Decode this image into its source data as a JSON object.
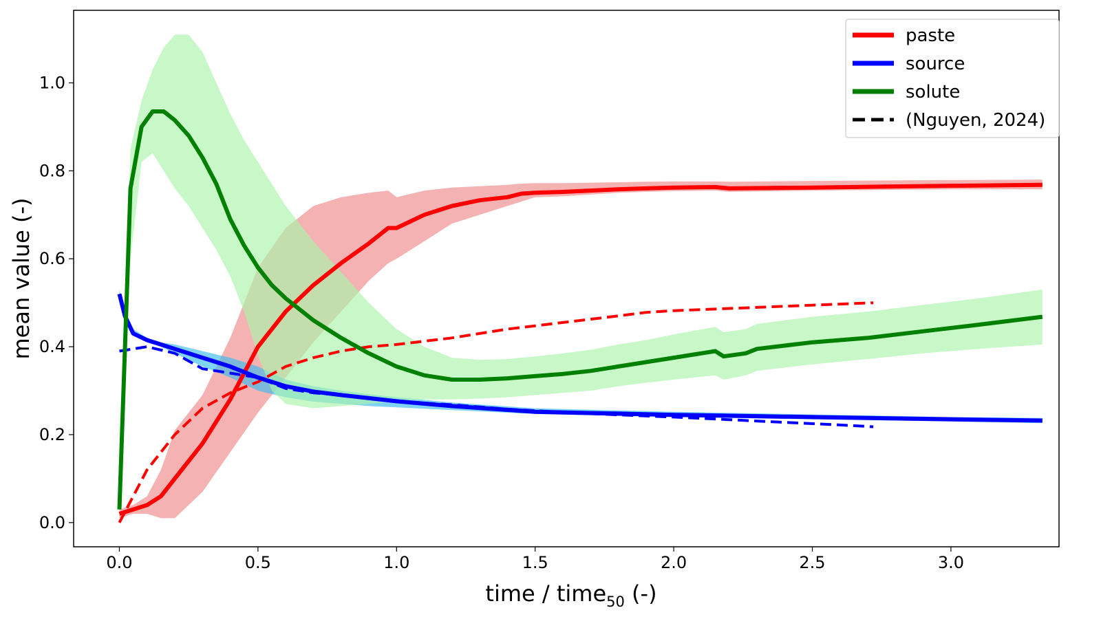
{
  "chart_data": {
    "type": "line",
    "title": "",
    "xlabel": "time / time",
    "xlabel_sub": "50",
    "xlabel_suffix": " (-)",
    "ylabel": "mean value (-)",
    "xlim": [
      -0.165,
      3.39
    ],
    "ylim": [
      -0.055,
      1.165
    ],
    "xticks": [
      0.0,
      0.5,
      1.0,
      1.5,
      2.0,
      2.5,
      3.0
    ],
    "xtick_labels": [
      "0.0",
      "0.5",
      "1.0",
      "1.5",
      "2.0",
      "2.5",
      "3.0"
    ],
    "yticks": [
      0.0,
      0.2,
      0.4,
      0.6,
      0.8,
      1.0
    ],
    "ytick_labels": [
      "0.0",
      "0.2",
      "0.4",
      "0.6",
      "0.8",
      "1.0"
    ],
    "grid": false,
    "legend_position": "top-right",
    "legend": [
      {
        "label": "paste",
        "color": "#ff0000",
        "style": "solid"
      },
      {
        "label": "source",
        "color": "#0000ff",
        "style": "solid"
      },
      {
        "label": "solute",
        "color": "#008000",
        "style": "solid"
      },
      {
        "label": "(Nguyen, 2024)",
        "color": "#000000",
        "style": "dashed"
      }
    ],
    "series": [
      {
        "name": "paste",
        "color": "#ff0000",
        "band_color": "#ee8888",
        "x": [
          0.0,
          0.05,
          0.1,
          0.15,
          0.2,
          0.3,
          0.4,
          0.5,
          0.6,
          0.7,
          0.8,
          0.9,
          0.97,
          1.0,
          1.1,
          1.2,
          1.3,
          1.4,
          1.45,
          1.5,
          1.6,
          1.7,
          1.8,
          1.9,
          2.0,
          2.15,
          2.2,
          2.5,
          3.0,
          3.33
        ],
        "y": [
          0.02,
          0.03,
          0.04,
          0.06,
          0.1,
          0.18,
          0.28,
          0.4,
          0.48,
          0.54,
          0.59,
          0.635,
          0.67,
          0.67,
          0.7,
          0.72,
          0.733,
          0.74,
          0.748,
          0.75,
          0.752,
          0.755,
          0.758,
          0.76,
          0.762,
          0.763,
          0.76,
          0.762,
          0.766,
          0.768
        ],
        "lower": [
          0.01,
          0.02,
          0.02,
          0.01,
          0.01,
          0.07,
          0.16,
          0.25,
          0.33,
          0.41,
          0.48,
          0.55,
          0.59,
          0.6,
          0.64,
          0.68,
          0.7,
          0.72,
          0.73,
          0.74,
          0.742,
          0.746,
          0.75,
          0.752,
          0.754,
          0.755,
          0.752,
          0.755,
          0.758,
          0.758
        ],
        "upper": [
          0.03,
          0.04,
          0.06,
          0.12,
          0.21,
          0.29,
          0.42,
          0.58,
          0.67,
          0.72,
          0.74,
          0.75,
          0.755,
          0.74,
          0.755,
          0.762,
          0.765,
          0.768,
          0.771,
          0.772,
          0.772,
          0.773,
          0.774,
          0.775,
          0.776,
          0.776,
          0.775,
          0.777,
          0.779,
          0.78
        ]
      },
      {
        "name": "source",
        "color": "#0000ff",
        "band_color": "#3bbcee",
        "x": [
          0.0,
          0.02,
          0.05,
          0.1,
          0.15,
          0.2,
          0.3,
          0.4,
          0.5,
          0.6,
          0.7,
          0.8,
          0.9,
          1.0,
          1.2,
          1.5,
          2.0,
          2.5,
          3.0,
          3.33
        ],
        "y": [
          0.52,
          0.47,
          0.43,
          0.415,
          0.405,
          0.395,
          0.375,
          0.355,
          0.33,
          0.31,
          0.298,
          0.29,
          0.283,
          0.276,
          0.265,
          0.252,
          0.245,
          0.24,
          0.235,
          0.232
        ],
        "lower": [
          0.51,
          0.46,
          0.43,
          0.41,
          0.4,
          0.385,
          0.355,
          0.33,
          0.3,
          0.285,
          0.275,
          0.27,
          0.265,
          0.262,
          0.256,
          0.247,
          0.24,
          0.235,
          0.23,
          0.226
        ],
        "upper": [
          0.53,
          0.48,
          0.44,
          0.42,
          0.41,
          0.405,
          0.39,
          0.375,
          0.355,
          0.325,
          0.31,
          0.3,
          0.292,
          0.285,
          0.273,
          0.26,
          0.252,
          0.246,
          0.24,
          0.238
        ]
      },
      {
        "name": "solute",
        "color": "#008000",
        "band_color": "#aaf5aa",
        "x": [
          0.0,
          0.04,
          0.08,
          0.12,
          0.16,
          0.2,
          0.25,
          0.3,
          0.35,
          0.4,
          0.45,
          0.5,
          0.55,
          0.6,
          0.7,
          0.8,
          0.9,
          1.0,
          1.1,
          1.2,
          1.3,
          1.4,
          1.5,
          1.6,
          1.7,
          1.8,
          1.9,
          2.0,
          2.15,
          2.18,
          2.26,
          2.3,
          2.5,
          2.7,
          2.9,
          3.1,
          3.33
        ],
        "y": [
          0.03,
          0.76,
          0.9,
          0.935,
          0.935,
          0.915,
          0.88,
          0.83,
          0.77,
          0.69,
          0.63,
          0.58,
          0.54,
          0.51,
          0.46,
          0.42,
          0.385,
          0.355,
          0.335,
          0.325,
          0.325,
          0.328,
          0.333,
          0.338,
          0.345,
          0.355,
          0.365,
          0.375,
          0.39,
          0.378,
          0.385,
          0.395,
          0.41,
          0.42,
          0.435,
          0.45,
          0.468
        ],
        "lower": [
          0.02,
          0.6,
          0.82,
          0.84,
          0.8,
          0.76,
          0.72,
          0.67,
          0.62,
          0.56,
          0.48,
          0.38,
          0.3,
          0.27,
          0.26,
          0.265,
          0.27,
          0.275,
          0.28,
          0.28,
          0.282,
          0.285,
          0.29,
          0.295,
          0.3,
          0.31,
          0.318,
          0.325,
          0.335,
          0.325,
          0.335,
          0.345,
          0.36,
          0.372,
          0.385,
          0.395,
          0.405
        ],
        "upper": [
          0.04,
          0.85,
          0.96,
          1.03,
          1.08,
          1.11,
          1.11,
          1.07,
          1.0,
          0.93,
          0.87,
          0.82,
          0.77,
          0.72,
          0.64,
          0.57,
          0.5,
          0.44,
          0.4,
          0.375,
          0.37,
          0.372,
          0.378,
          0.385,
          0.393,
          0.405,
          0.415,
          0.428,
          0.445,
          0.433,
          0.44,
          0.452,
          0.468,
          0.48,
          0.495,
          0.51,
          0.53
        ]
      },
      {
        "name": "",
        "color": "#ff0000",
        "dashed": true,
        "x": [
          0.0,
          0.05,
          0.1,
          0.15,
          0.2,
          0.3,
          0.4,
          0.5,
          0.6,
          0.7,
          0.8,
          0.9,
          1.0,
          1.2,
          1.4,
          1.6,
          1.8,
          1.9,
          2.0,
          2.2,
          2.4,
          2.6,
          2.72
        ],
        "y": [
          0.0,
          0.06,
          0.12,
          0.16,
          0.2,
          0.26,
          0.295,
          0.32,
          0.355,
          0.375,
          0.39,
          0.4,
          0.405,
          0.42,
          0.44,
          0.455,
          0.47,
          0.478,
          0.482,
          0.487,
          0.492,
          0.497,
          0.5
        ]
      },
      {
        "name": "",
        "color": "#0000ff",
        "dashed": true,
        "x": [
          0.0,
          0.1,
          0.2,
          0.3,
          0.4,
          0.5,
          0.6,
          0.7,
          0.8,
          0.9,
          1.0,
          1.2,
          1.4,
          1.6,
          1.8,
          2.0,
          2.2,
          2.4,
          2.6,
          2.72
        ],
        "y": [
          0.39,
          0.4,
          0.385,
          0.35,
          0.34,
          0.33,
          0.305,
          0.295,
          0.29,
          0.283,
          0.276,
          0.268,
          0.258,
          0.251,
          0.245,
          0.24,
          0.234,
          0.228,
          0.222,
          0.218
        ]
      }
    ]
  }
}
